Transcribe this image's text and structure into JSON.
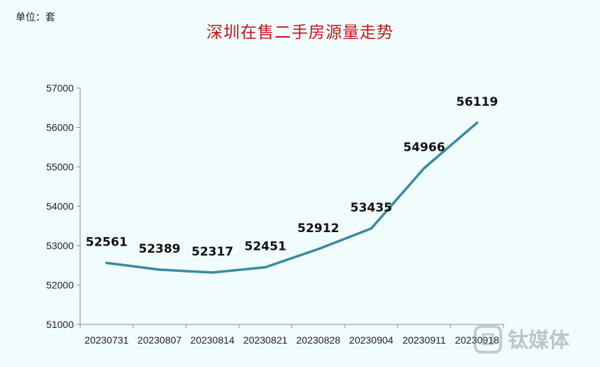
{
  "unit_label": "单位：套",
  "watermark": "钛媒体",
  "chart_data": {
    "type": "line",
    "title": "深圳在售二手房源量走势",
    "categories": [
      "20230731",
      "20230807",
      "20230814",
      "20230821",
      "20230828",
      "20230904",
      "20230911",
      "20230918"
    ],
    "values": [
      52561,
      52389,
      52317,
      52451,
      52912,
      53435,
      54966,
      56119
    ],
    "ylim": [
      51000,
      57000
    ],
    "yticks": [
      51000,
      52000,
      53000,
      54000,
      55000,
      56000,
      57000
    ],
    "data_labels": true,
    "grid": false,
    "line_color": "#3a8c9e"
  }
}
